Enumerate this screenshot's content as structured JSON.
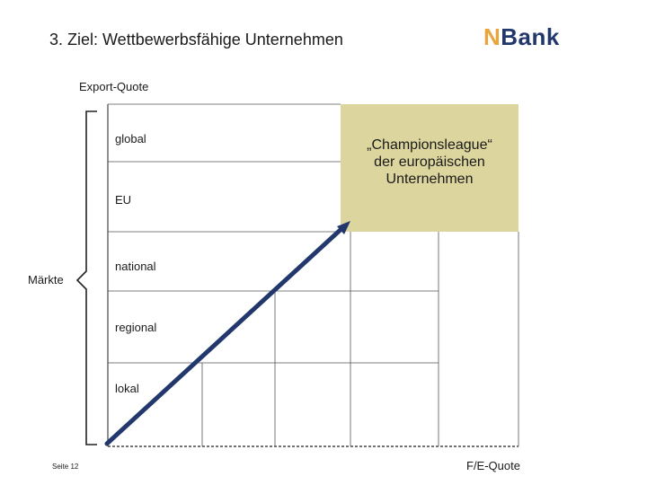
{
  "header": {
    "title": "3. Ziel: Wettbewerbsfähige Unternehmen",
    "logo_n": "N",
    "logo_bank": "Bank"
  },
  "diagram": {
    "y_axis_label": "Export-Quote",
    "x_axis_label": "F/E-Quote",
    "bracket_label": "Märkte",
    "levels": [
      "global",
      "EU",
      "national",
      "regional",
      "lokal"
    ],
    "highlight_text_line1": "„Championsleague“",
    "highlight_text_line2": "der europäischen",
    "highlight_text_line3": "Unternehmen",
    "highlight_color": "#dcd59e",
    "arrow_color": "#22376b"
  },
  "footer": {
    "page_number": "Seite 12"
  }
}
